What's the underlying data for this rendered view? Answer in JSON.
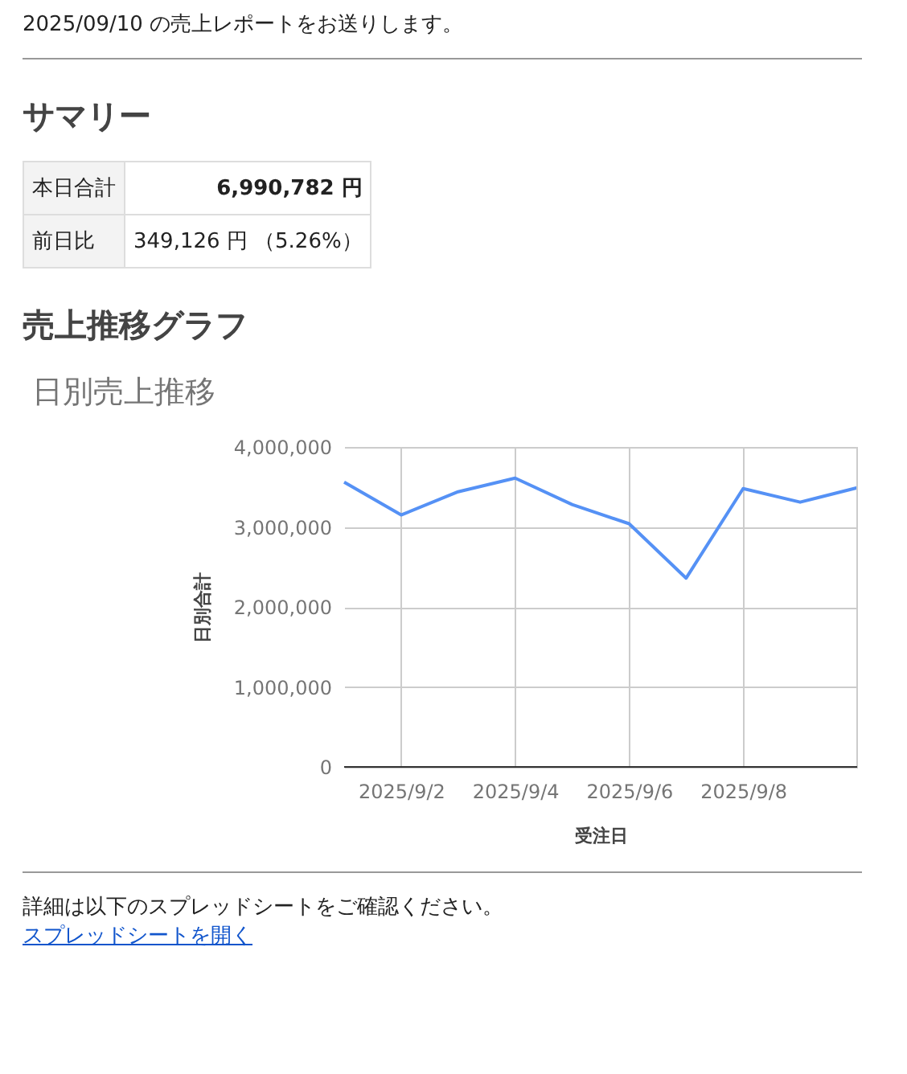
{
  "chart_data": {
    "type": "line",
    "title": "日別売上推移",
    "xlabel": "受注日",
    "ylabel": "日別合計",
    "x": [
      "2025-09-01",
      "2025-09-02",
      "2025-09-03",
      "2025-09-04",
      "2025-09-05",
      "2025-09-06",
      "2025-09-07",
      "2025-09-08",
      "2025-09-09",
      "2025-09-10"
    ],
    "series": [
      {
        "color": "#5591f5",
        "values": [
          3560000,
          3150000,
          3440000,
          3610000,
          3280000,
          3040000,
          2360000,
          3480000,
          3310000,
          3490000
        ]
      }
    ],
    "xlim": [
      "2025-09-01",
      "2025-09-10"
    ],
    "xticks": [
      {
        "value": "2025-09-02",
        "label": "2025/9/2"
      },
      {
        "value": "2025-09-04",
        "label": "2025/9/4"
      },
      {
        "value": "2025-09-06",
        "label": "2025/9/6"
      },
      {
        "value": "2025-09-08",
        "label": "2025/9/8"
      }
    ],
    "ylim": [
      0,
      4000000
    ],
    "yticks": [
      0,
      {
        "value": 1000000,
        "label": "1,000,000"
      },
      {
        "value": 2000000,
        "label": "2,000,000"
      },
      {
        "value": 3000000,
        "label": "3,000,000"
      },
      {
        "value": 4000000,
        "label": "4,000,000"
      }
    ],
    "grid": true,
    "legend": false,
    "marker": "none",
    "line_style": "solid",
    "annotations": [
      "2025/09/10 の売上レポートをお送りします。",
      "サマリー",
      "本日合計",
      "6,990,782 円",
      "前日比",
      "349,126 円 （5.26%）",
      "売上推移グラフ",
      "詳細は以下のスプレッドシートをご確認ください。",
      "スプレッドシートを開く"
    ]
  }
}
